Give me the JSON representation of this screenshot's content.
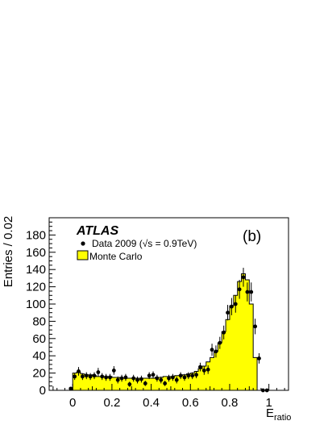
{
  "chart_data": {
    "type": "histogram",
    "experiment_label": "ATLAS",
    "panel_label": "(b)",
    "xlabel_main": "E",
    "xlabel_sub": "ratio",
    "ylabel": "Entries / 0.02",
    "xlim": [
      -0.12,
      1.1
    ],
    "ylim": [
      0,
      200
    ],
    "bin_width": 0.02,
    "x_ticks": [
      0,
      0.2,
      0.4,
      0.6,
      0.8,
      1
    ],
    "x_tick_labels": [
      "0",
      "0.2",
      "0.4",
      "0.6",
      "0.8",
      "1"
    ],
    "y_ticks": [
      0,
      20,
      40,
      60,
      80,
      100,
      120,
      140,
      160,
      180
    ],
    "y_tick_labels": [
      "0",
      "20",
      "40",
      "60",
      "80",
      "100",
      "120",
      "140",
      "160",
      "180"
    ],
    "legend": {
      "placement": "top-left",
      "data_label": "Data 2009 (√s = 0.9TeV)",
      "mc_label": "Monte Carlo"
    },
    "colors": {
      "mc_fill": "#ffff00",
      "mc_line": "#000000",
      "data": "#000000"
    },
    "mc": {
      "name": "Monte Carlo",
      "bin_edges_start": 0.0,
      "values": [
        20,
        21,
        19,
        18,
        18,
        17,
        16,
        16,
        16,
        16,
        15,
        15,
        14,
        14,
        14,
        14,
        14,
        14,
        14,
        14,
        14,
        15,
        15,
        16,
        16,
        16,
        17,
        17,
        18,
        19,
        20,
        22,
        25,
        28,
        33,
        38,
        45,
        55,
        68,
        82,
        98,
        110,
        126,
        135,
        128,
        100,
        38
      ]
    },
    "data": {
      "name": "Data 2009",
      "x": [
        -0.01,
        0.01,
        0.03,
        0.05,
        0.07,
        0.09,
        0.11,
        0.13,
        0.15,
        0.17,
        0.19,
        0.21,
        0.23,
        0.25,
        0.27,
        0.29,
        0.31,
        0.33,
        0.35,
        0.37,
        0.39,
        0.41,
        0.43,
        0.45,
        0.47,
        0.49,
        0.51,
        0.53,
        0.55,
        0.57,
        0.59,
        0.61,
        0.63,
        0.65,
        0.67,
        0.69,
        0.71,
        0.73,
        0.75,
        0.77,
        0.79,
        0.81,
        0.83,
        0.85,
        0.87,
        0.89,
        0.91,
        0.93,
        0.95,
        0.97,
        0.99
      ],
      "y": [
        2,
        16,
        22,
        16,
        17,
        16,
        17,
        21,
        16,
        15,
        15,
        23,
        12,
        14,
        15,
        7,
        14,
        12,
        13,
        8,
        17,
        18,
        14,
        12,
        8,
        14,
        15,
        12,
        17,
        15,
        17,
        17,
        18,
        27,
        23,
        24,
        47,
        45,
        55,
        67,
        90,
        97,
        100,
        117,
        131,
        114,
        114,
        74,
        37,
        0,
        0
      ],
      "yerr": [
        2,
        4,
        5,
        4,
        4,
        4,
        4,
        5,
        4,
        4,
        4,
        5,
        4,
        4,
        4,
        3,
        4,
        4,
        4,
        3,
        4,
        4,
        4,
        4,
        3,
        4,
        4,
        4,
        4,
        4,
        4,
        4,
        4,
        5,
        5,
        5,
        7,
        7,
        7,
        8,
        9,
        10,
        10,
        11,
        11,
        11,
        11,
        9,
        6,
        0,
        0
      ]
    }
  }
}
